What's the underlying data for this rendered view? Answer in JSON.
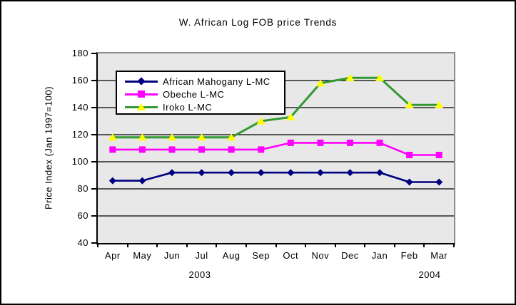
{
  "window": {
    "title": "W. African Log FOB price Trends"
  },
  "chart_data": {
    "type": "line",
    "title": "W. African Log FOB price Trends",
    "ylabel": "Price Index (Jan 1997=100)",
    "xlabel": "",
    "ylim": [
      40,
      180
    ],
    "y_ticks": [
      40,
      60,
      80,
      100,
      120,
      140,
      160,
      180
    ],
    "grid": true,
    "plot_background": "#E8E8E8",
    "gridline_color": "#000000",
    "legend_position": "top-left-inside",
    "categories": [
      "Apr",
      "May",
      "Jun",
      "Jul",
      "Aug",
      "Sep",
      "Oct",
      "Nov",
      "Dec",
      "Jan",
      "Feb",
      "Mar"
    ],
    "year_labels": [
      "2003",
      "2004"
    ],
    "series": [
      {
        "name": "African Mahogany L-MC",
        "color": "#000080",
        "marker": "diamond",
        "marker_color": "#000080",
        "values": [
          86,
          86,
          92,
          92,
          92,
          92,
          92,
          92,
          92,
          92,
          85,
          85
        ]
      },
      {
        "name": "Obeche L-MC",
        "color": "#FF00FF",
        "marker": "square",
        "marker_color": "#FF00FF",
        "values": [
          109,
          109,
          109,
          109,
          109,
          109,
          114,
          114,
          114,
          114,
          105,
          105
        ]
      },
      {
        "name": "Iroko L-MC",
        "color": "#339933",
        "marker": "triangle",
        "marker_color": "#FFFF00",
        "values": [
          118,
          118,
          118,
          118,
          118,
          130,
          133,
          158,
          162,
          162,
          142,
          142
        ]
      }
    ]
  }
}
